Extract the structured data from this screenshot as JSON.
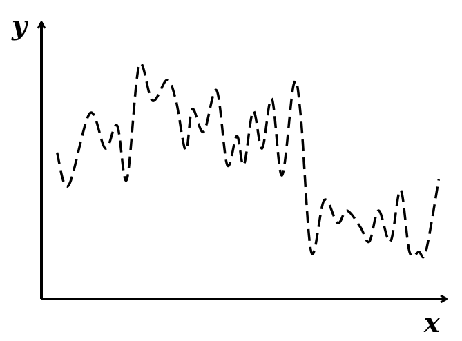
{
  "chart_data": {
    "type": "line",
    "xlabel": "x",
    "ylabel": "y",
    "xlim": [
      0,
      100
    ],
    "ylim": [
      0,
      100
    ],
    "grid": false,
    "line_style": "dashed",
    "line_color": "#000000",
    "series": [
      {
        "x": [
          3.5,
          6.3,
          11.6,
          15.4,
          18.3,
          20.7,
          23.7,
          27.0,
          30.6,
          32.8,
          35.2,
          36.8,
          39.6,
          42.8,
          45.4,
          47.8,
          49.5,
          51.8,
          54.0,
          56.4,
          58.9,
          61.8,
          63.5,
          66.1,
          69.3,
          72.6,
          74.9,
          78.2,
          80.4,
          82.7,
          85.6,
          88.1,
          90.3,
          92.6,
          94.3,
          97.5
        ],
        "y": [
          58,
          42,
          77,
          60,
          71,
          45,
          100,
          83,
          93,
          83,
          59,
          79,
          68,
          88,
          52,
          66,
          52,
          78,
          60,
          84,
          47,
          91,
          76,
          10,
          35,
          24,
          30,
          22,
          15,
          30,
          15,
          40,
          10,
          10,
          10,
          45
        ]
      }
    ]
  }
}
